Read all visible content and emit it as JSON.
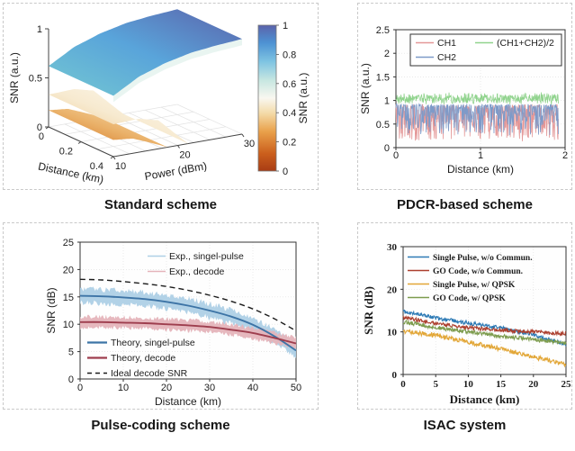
{
  "page": {
    "background": "#ffffff"
  },
  "chart_data": [
    {
      "id": "standard",
      "type": "surface3d",
      "title": "Standard scheme",
      "axes": {
        "x": {
          "label": "Distance (km)",
          "ticks": [
            "0",
            "0.2",
            "0.4"
          ],
          "lim": [
            0,
            0.4
          ]
        },
        "y": {
          "label": "Power (dBm)",
          "ticks": [
            "10",
            "20",
            "30"
          ],
          "lim": [
            10,
            30
          ]
        },
        "z": {
          "label": "SNR (a.u.)",
          "ticks": [
            "0",
            "0.5",
            "1"
          ],
          "lim": [
            0,
            1
          ]
        }
      },
      "colorbar": {
        "label": "SNR (a.u.)",
        "ticks": [
          "0",
          "0.2",
          "0.4",
          "0.6",
          "0.8",
          "1"
        ],
        "stops": [
          "#a83c14",
          "#cb5f1d",
          "#e9a04a",
          "#f4dcab",
          "#f9f7f0",
          "#c8e7e1",
          "#7fc4e2",
          "#4d92d3",
          "#5b63ab"
        ],
        "offsets": [
          0,
          0.12,
          0.27,
          0.4,
          0.5,
          0.62,
          0.75,
          0.88,
          1
        ]
      },
      "surfaces": [
        {
          "name": "low-snr-surface",
          "z_vs_power01": [
            [
              0,
              0.17
            ],
            [
              0.15,
              0.15
            ],
            [
              0.3,
              0.07
            ],
            [
              0.42,
              0.0
            ]
          ],
          "gradient": [
            "#cf6a16",
            "#eab169",
            "#f7e7c0"
          ]
        },
        {
          "name": "mid-snr-surface",
          "z_vs_power01": [
            [
              0,
              0.33
            ],
            [
              0.2,
              0.34
            ],
            [
              0.35,
              0.29
            ],
            [
              0.5,
              0.1
            ],
            [
              0.58,
              0.0
            ]
          ],
          "gradient": [
            "#edc17c",
            "#f7ead0",
            "#fdfbf4"
          ]
        },
        {
          "name": "high-snr-surface",
          "z_vs_power01": [
            [
              0,
              0.62
            ],
            [
              0.2,
              0.77
            ],
            [
              0.4,
              0.86
            ],
            [
              0.6,
              0.92
            ],
            [
              0.8,
              0.95
            ],
            [
              1,
              0.97
            ]
          ],
          "gradient": [
            "#74c8d2",
            "#59a4da",
            "#5b63ab"
          ],
          "underside": "#e9f5f1"
        }
      ]
    },
    {
      "id": "pdcr",
      "type": "noisy-line",
      "title": "PDCR-based scheme",
      "axes": {
        "x": {
          "label": "Distance (km)",
          "ticks": [
            "0",
            "1",
            "2"
          ],
          "lim": [
            0,
            2
          ]
        },
        "y": {
          "label": "SNR (a.u.)",
          "ticks": [
            "0",
            "0.5",
            "1",
            "1.5",
            "2",
            "2.5"
          ],
          "lim": [
            0,
            2.5
          ]
        }
      },
      "legend": {
        "border": true,
        "columns": 2
      },
      "series": [
        {
          "name": "CH1",
          "color": "#e49898",
          "gen": {
            "kind": "dips",
            "base": 0.92,
            "depth": 0.75,
            "pow": 2.1,
            "seed": 7,
            "n": 420,
            "x_end": 1.92
          }
        },
        {
          "name": "CH2",
          "color": "#7e9ac8",
          "gen": {
            "kind": "dips",
            "base": 0.93,
            "depth": 0.64,
            "pow": 2.3,
            "seed": 13,
            "n": 420,
            "x_end": 1.92
          }
        },
        {
          "name": "(CH1+CH2)/2",
          "color": "#90d38d",
          "gen": {
            "kind": "uniform",
            "base": 1.04,
            "amp": 0.14,
            "seed": 21,
            "n": 420,
            "x_end": 1.92
          }
        }
      ]
    },
    {
      "id": "pulse-coding",
      "type": "line",
      "title": "Pulse-coding scheme",
      "axes": {
        "x": {
          "label": "Distance (km)",
          "ticks": [
            "0",
            "10",
            "20",
            "30",
            "40",
            "50"
          ],
          "lim": [
            0,
            50
          ]
        },
        "y": {
          "label": "SNR (dB)",
          "ticks": [
            "0",
            "5",
            "10",
            "15",
            "20",
            "25"
          ],
          "lim": [
            0,
            25
          ]
        }
      },
      "x_anchors": [
        0,
        5,
        10,
        15,
        20,
        25,
        30,
        35,
        40,
        45,
        50
      ],
      "series": [
        {
          "name": "Exp., singel-pulse",
          "style": "band",
          "color": "#aed0e6",
          "values": [
            15.2,
            15.1,
            14.9,
            14.6,
            14.1,
            13.4,
            12.5,
            11.4,
            9.9,
            7.8,
            5.2
          ],
          "halfwidth": 1.7,
          "seed": 31
        },
        {
          "name": "Exp., decode",
          "style": "band",
          "color": "#e5b4bb",
          "values": [
            10.4,
            10.4,
            10.3,
            10.2,
            10.0,
            9.8,
            9.5,
            9.0,
            8.4,
            7.5,
            6.5
          ],
          "halfwidth": 1.3,
          "seed": 37
        },
        {
          "name": "Theory, singel-pulse",
          "style": "line",
          "color": "#3d74a6",
          "values": [
            15.2,
            15.1,
            14.9,
            14.6,
            14.1,
            13.4,
            12.5,
            11.4,
            9.9,
            7.8,
            5.2
          ]
        },
        {
          "name": "Theory, decode",
          "style": "line",
          "color": "#9e3e4e",
          "values": [
            10.4,
            10.4,
            10.3,
            10.2,
            10.0,
            9.8,
            9.5,
            9.0,
            8.4,
            7.5,
            6.5
          ]
        },
        {
          "name": "Ideal decode SNR",
          "style": "dashed",
          "color": "#1b1b1b",
          "values": [
            18.2,
            18.1,
            17.8,
            17.4,
            16.9,
            16.2,
            15.3,
            14.2,
            12.8,
            11.0,
            8.8
          ]
        }
      ]
    },
    {
      "id": "isac",
      "type": "noisy-line",
      "title": "ISAC system",
      "font": "serif-bold",
      "axes": {
        "x": {
          "label": "Distance (km)",
          "ticks": [
            "0",
            "5",
            "10",
            "15",
            "20",
            "25"
          ],
          "lim": [
            0,
            25
          ]
        },
        "y": {
          "label": "SNR (dB)",
          "ticks": [
            "0",
            "10",
            "20",
            "30"
          ],
          "lim": [
            0,
            30
          ]
        }
      },
      "x_anchors": [
        0,
        5,
        10,
        15,
        20,
        25
      ],
      "series": [
        {
          "name": "Single Pulse, w/o Commun.",
          "color": "#2d7ab5",
          "values": [
            14.8,
            13.3,
            12.1,
            10.9,
            9.3,
            7.0
          ],
          "noise": 0.55,
          "seed": 41
        },
        {
          "name": "GO Code, w/o Commun.",
          "color": "#ac3f2e",
          "values": [
            13.4,
            11.9,
            11.0,
            10.4,
            10.0,
            9.6
          ],
          "noise": 0.5,
          "seed": 43
        },
        {
          "name": "Single Pulse, w/ QPSK",
          "color": "#e2a636",
          "values": [
            10.2,
            9.2,
            7.6,
            6.1,
            4.1,
            2.4
          ],
          "noise": 0.65,
          "seed": 47
        },
        {
          "name": "GO Code, w/ QPSK",
          "color": "#7d9c4e",
          "values": [
            12.4,
            11.0,
            10.0,
            9.0,
            8.2,
            7.4
          ],
          "noise": 0.55,
          "seed": 53
        }
      ]
    }
  ]
}
